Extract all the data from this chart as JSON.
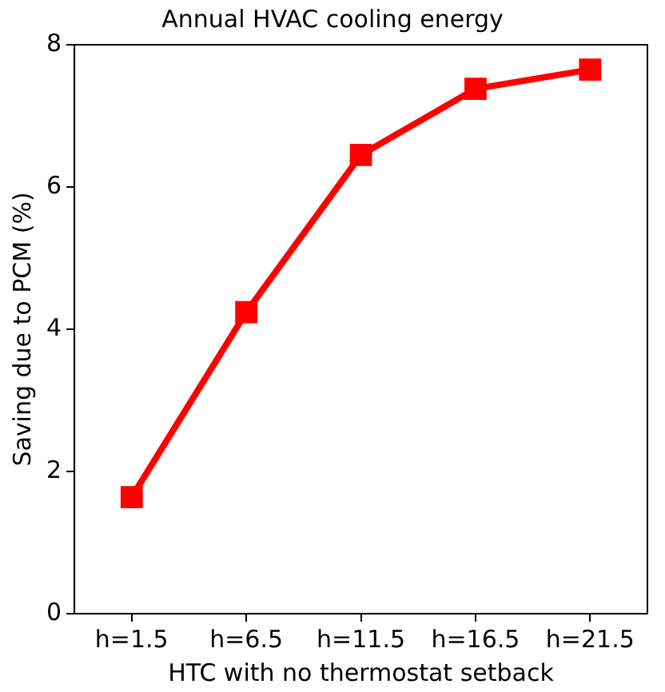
{
  "chart_data": {
    "type": "line",
    "title": "Annual HVAC cooling energy",
    "xlabel": "HTC with no thermostat setback",
    "ylabel": "Saving due to PCM (%)",
    "categories": [
      "h=1.5",
      "h=6.5",
      "h=11.5",
      "h=16.5",
      "h=21.5"
    ],
    "series": [
      {
        "color": "#ff0000",
        "values": [
          1.64,
          4.24,
          6.45,
          7.38,
          7.65
        ]
      }
    ],
    "ylim": [
      0,
      8
    ],
    "yticks": [
      0,
      2,
      4,
      6,
      8
    ],
    "grid": false,
    "legend": false,
    "marker": "square",
    "line_style": "solid"
  }
}
